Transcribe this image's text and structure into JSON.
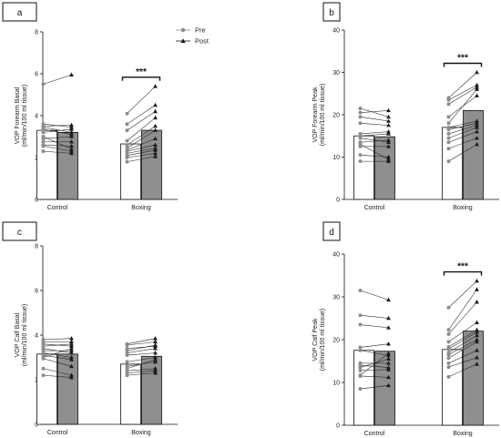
{
  "legend": {
    "pre_label": "Pre",
    "post_label": "Post",
    "pre_color": "#8c8c8c",
    "post_color": "#1a1a1a"
  },
  "chart_data": [
    {
      "panel": "a",
      "type": "bar",
      "categories": [
        "Control",
        "Boxing"
      ],
      "ylabel_line1": "VOP Forearm Basal",
      "ylabel_line2": "(ml/min/100 ml tissue)",
      "ylim": [
        0,
        8
      ],
      "yticks": [
        0,
        2,
        4,
        6,
        8
      ],
      "bars": {
        "Control": {
          "pre": 3.3,
          "post": 3.2
        },
        "Boxing": {
          "pre": 2.65,
          "post": 3.3
        }
      },
      "pairs": {
        "Control": [
          [
            5.5,
            5.95
          ],
          [
            3.6,
            3.45
          ],
          [
            3.5,
            3.55
          ],
          [
            3.45,
            3.2
          ],
          [
            3.35,
            3.1
          ],
          [
            3.2,
            3.35
          ],
          [
            2.9,
            3.0
          ],
          [
            2.75,
            2.75
          ],
          [
            2.6,
            2.55
          ],
          [
            2.55,
            2.3
          ],
          [
            2.3,
            2.2
          ],
          [
            3.0,
            2.4
          ]
        ],
        "Boxing": [
          [
            4.1,
            5.4
          ],
          [
            3.6,
            4.5
          ],
          [
            3.3,
            4.2
          ],
          [
            2.8,
            3.9
          ],
          [
            2.6,
            3.5
          ],
          [
            2.45,
            3.3
          ],
          [
            2.35,
            2.9
          ],
          [
            2.3,
            2.6
          ],
          [
            2.2,
            2.45
          ],
          [
            2.1,
            2.35
          ],
          [
            2.0,
            2.2
          ],
          [
            1.8,
            2.05
          ]
        ]
      },
      "significance": {
        "label": "***",
        "category": "Boxing"
      }
    },
    {
      "panel": "b",
      "type": "bar",
      "categories": [
        "Control",
        "Boxing"
      ],
      "ylabel_line1": "VOP Forearm Peak",
      "ylabel_line2": "(ml/min/100 ml tissue)",
      "ylim": [
        0,
        40
      ],
      "yticks": [
        0,
        10,
        20,
        30,
        40
      ],
      "bars": {
        "Control": {
          "pre": 15.0,
          "post": 14.8
        },
        "Boxing": {
          "pre": 17.0,
          "post": 21.0
        }
      },
      "pairs": {
        "Control": [
          [
            21.5,
            19.5
          ],
          [
            20.5,
            21.0
          ],
          [
            19.5,
            18.5
          ],
          [
            18.0,
            17.5
          ],
          [
            15.5,
            16.0
          ],
          [
            15.0,
            15.5
          ],
          [
            14.5,
            13.5
          ],
          [
            13.5,
            14.0
          ],
          [
            12.5,
            12.5
          ],
          [
            10.5,
            10.0
          ],
          [
            9.0,
            9.0
          ],
          [
            13.0,
            9.5
          ]
        ],
        "Boxing": [
          [
            24.0,
            30.0
          ],
          [
            23.5,
            27.0
          ],
          [
            22.5,
            26.5
          ],
          [
            19.5,
            24.5
          ],
          [
            18.0,
            26.0
          ],
          [
            17.0,
            18.5
          ],
          [
            16.5,
            18.0
          ],
          [
            15.5,
            17.5
          ],
          [
            14.5,
            17.0
          ],
          [
            13.5,
            16.0
          ],
          [
            12.0,
            14.5
          ],
          [
            9.0,
            13.0
          ]
        ]
      },
      "significance": {
        "label": "***",
        "category": "Boxing"
      }
    },
    {
      "panel": "c",
      "type": "bar",
      "categories": [
        "Control",
        "Boxing"
      ],
      "ylabel_line1": "VOP Calf Basal",
      "ylabel_line2": "(ml/min/100 ml tissue)",
      "ylim": [
        0,
        8
      ],
      "yticks": [
        0,
        2,
        4,
        6,
        8
      ],
      "bars": {
        "Control": {
          "pre": 3.15,
          "post": 3.15
        },
        "Boxing": {
          "pre": 2.7,
          "post": 3.05
        }
      },
      "pairs": {
        "Control": [
          [
            3.8,
            3.85
          ],
          [
            3.7,
            3.7
          ],
          [
            3.6,
            3.5
          ],
          [
            3.5,
            3.6
          ],
          [
            3.4,
            3.2
          ],
          [
            3.3,
            3.3
          ],
          [
            3.2,
            3.0
          ],
          [
            3.1,
            2.9
          ],
          [
            2.95,
            2.6
          ],
          [
            2.5,
            2.2
          ],
          [
            2.2,
            2.1
          ],
          [
            3.0,
            3.4
          ]
        ],
        "Boxing": [
          [
            3.6,
            3.85
          ],
          [
            3.55,
            3.7
          ],
          [
            3.4,
            3.5
          ],
          [
            3.3,
            3.55
          ],
          [
            3.2,
            3.4
          ],
          [
            3.1,
            3.2
          ],
          [
            2.8,
            3.0
          ],
          [
            2.6,
            2.8
          ],
          [
            2.5,
            2.9
          ],
          [
            2.4,
            2.5
          ],
          [
            2.3,
            2.4
          ],
          [
            2.2,
            2.3
          ]
        ]
      },
      "significance": null
    },
    {
      "panel": "d",
      "type": "bar",
      "categories": [
        "Control",
        "Boxing"
      ],
      "ylabel_line1": "VOP Calf Peak",
      "ylabel_line2": "(ml/min/100 ml tissue)",
      "ylim": [
        0,
        40
      ],
      "yticks": [
        0,
        10,
        20,
        30,
        40
      ],
      "bars": {
        "Control": {
          "pre": 17.5,
          "post": 17.3
        },
        "Boxing": {
          "pre": 17.7,
          "post": 22.0
        }
      },
      "pairs": {
        "Control": [
          [
            31.5,
            29.3
          ],
          [
            25.7,
            25.0
          ],
          [
            23.5,
            22.8
          ],
          [
            18.2,
            19.0
          ],
          [
            17.5,
            16.3
          ],
          [
            14.5,
            14.5
          ],
          [
            14.0,
            13.5
          ],
          [
            13.5,
            15.5
          ],
          [
            12.8,
            13.0
          ],
          [
            11.5,
            11.2
          ],
          [
            8.5,
            9.3
          ],
          [
            11.7,
            16.8
          ]
        ],
        "Boxing": [
          [
            27.5,
            33.7
          ],
          [
            22.3,
            31.7
          ],
          [
            21.3,
            28.8
          ],
          [
            19.5,
            24.0
          ],
          [
            18.3,
            22.3
          ],
          [
            17.8,
            21.8
          ],
          [
            17.0,
            21.0
          ],
          [
            16.5,
            20.0
          ],
          [
            15.7,
            19.5
          ],
          [
            14.5,
            17.5
          ],
          [
            13.6,
            15.8
          ],
          [
            11.3,
            14.3
          ]
        ]
      },
      "significance": {
        "label": "***",
        "category": "Boxing"
      }
    }
  ]
}
